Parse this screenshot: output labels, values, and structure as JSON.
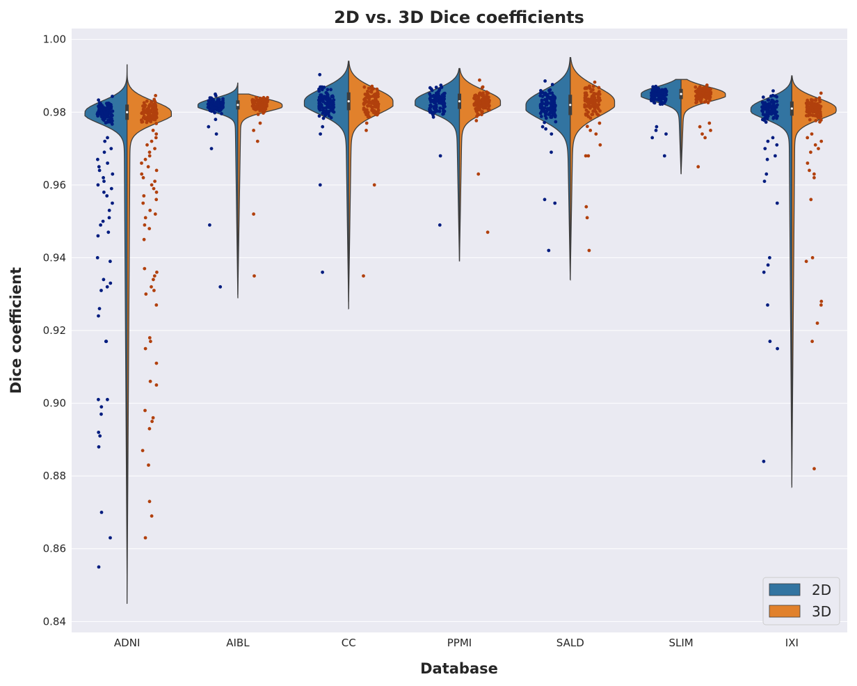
{
  "chart_data": {
    "type": "violin",
    "title": "2D vs. 3D Dice coefficients",
    "xlabel": "Database",
    "ylabel": "Dice coefficient",
    "categories": [
      "ADNI",
      "AIBL",
      "CC",
      "PPMI",
      "SALD",
      "SLIM",
      "IXI"
    ],
    "ylim": [
      0.837,
      1.003
    ],
    "yticks": [
      "0.84",
      "0.86",
      "0.88",
      "0.90",
      "0.92",
      "0.94",
      "0.96",
      "0.98",
      "1.00"
    ],
    "grid": true,
    "legend": {
      "placement": "bottom-right",
      "entries": [
        "2D",
        "3D"
      ]
    },
    "colors": {
      "2D": "#3274a1",
      "3D": "#e1812c",
      "dots_2D": "#001c7f",
      "dots_3D": "#b1400d",
      "background": "#eaeaf2",
      "grid": "#ffffff",
      "outline": "#3d3d3d"
    },
    "series": [
      {
        "name": "2D",
        "distributions": [
          {
            "category": "ADNI",
            "mode": 0.98,
            "sd": 0.003,
            "min": 0.853,
            "max": 0.993,
            "width": 0.38,
            "outliers": [
              0.973,
              0.972,
              0.97,
              0.969,
              0.967,
              0.966,
              0.965,
              0.964,
              0.963,
              0.962,
              0.961,
              0.96,
              0.959,
              0.958,
              0.957,
              0.955,
              0.953,
              0.951,
              0.95,
              0.949,
              0.947,
              0.946,
              0.94,
              0.939,
              0.934,
              0.933,
              0.932,
              0.931,
              0.926,
              0.924,
              0.917,
              0.917,
              0.901,
              0.901,
              0.899,
              0.897,
              0.892,
              0.891,
              0.888,
              0.87,
              0.863,
              0.855
            ]
          },
          {
            "category": "AIBL",
            "mode": 0.982,
            "sd": 0.0018,
            "min": 0.929,
            "max": 0.988,
            "width": 0.36,
            "outliers": [
              0.978,
              0.976,
              0.974,
              0.97,
              0.949,
              0.932
            ]
          },
          {
            "category": "CC",
            "mode": 0.983,
            "sd": 0.0035,
            "min": 0.926,
            "max": 0.994,
            "width": 0.4,
            "outliers": [
              0.979,
              0.976,
              0.974,
              0.96,
              0.936
            ]
          },
          {
            "category": "PPMI",
            "mode": 0.983,
            "sd": 0.003,
            "min": 0.939,
            "max": 0.992,
            "width": 0.4,
            "outliers": [
              0.98,
              0.968,
              0.949
            ]
          },
          {
            "category": "SALD",
            "mode": 0.982,
            "sd": 0.004,
            "min": 0.934,
            "max": 0.995,
            "width": 0.4,
            "outliers": [
              0.976,
              0.974,
              0.969,
              0.956,
              0.955,
              0.942
            ]
          },
          {
            "category": "SLIM",
            "mode": 0.985,
            "sd": 0.002,
            "min": 0.963,
            "max": 0.989,
            "width": 0.36,
            "outliers": [
              0.976,
              0.975,
              0.974,
              0.973,
              0.968
            ]
          },
          {
            "category": "IXI",
            "mode": 0.981,
            "sd": 0.0028,
            "min": 0.877,
            "max": 0.99,
            "width": 0.37,
            "outliers": [
              0.973,
              0.972,
              0.971,
              0.97,
              0.968,
              0.967,
              0.963,
              0.961,
              0.955,
              0.94,
              0.938,
              0.936,
              0.927,
              0.917,
              0.915,
              0.884
            ]
          }
        ]
      },
      {
        "name": "3D",
        "distributions": [
          {
            "category": "ADNI",
            "mode": 0.98,
            "sd": 0.003,
            "min": 0.845,
            "max": 0.993,
            "width": 0.4,
            "outliers": [
              0.975,
              0.974,
              0.973,
              0.972,
              0.971,
              0.97,
              0.969,
              0.968,
              0.967,
              0.966,
              0.965,
              0.964,
              0.963,
              0.962,
              0.961,
              0.96,
              0.959,
              0.958,
              0.957,
              0.956,
              0.955,
              0.953,
              0.952,
              0.951,
              0.949,
              0.948,
              0.945,
              0.937,
              0.936,
              0.935,
              0.934,
              0.932,
              0.931,
              0.93,
              0.927,
              0.918,
              0.917,
              0.915,
              0.911,
              0.906,
              0.905,
              0.898,
              0.896,
              0.895,
              0.893,
              0.887,
              0.883,
              0.873,
              0.869,
              0.863
            ]
          },
          {
            "category": "AIBL",
            "mode": 0.982,
            "sd": 0.0018,
            "min": 0.93,
            "max": 0.985,
            "width": 0.4,
            "outliers": [
              0.977,
              0.975,
              0.972,
              0.952,
              0.935
            ]
          },
          {
            "category": "CC",
            "mode": 0.983,
            "sd": 0.0035,
            "min": 0.928,
            "max": 0.994,
            "width": 0.4,
            "outliers": [
              0.98,
              0.977,
              0.975,
              0.96,
              0.935
            ]
          },
          {
            "category": "PPMI",
            "mode": 0.983,
            "sd": 0.003,
            "min": 0.939,
            "max": 0.992,
            "width": 0.37,
            "outliers": [
              0.98,
              0.963,
              0.947
            ]
          },
          {
            "category": "SALD",
            "mode": 0.983,
            "sd": 0.004,
            "min": 0.934,
            "max": 0.995,
            "width": 0.4,
            "outliers": [
              0.977,
              0.975,
              0.974,
              0.971,
              0.968,
              0.968,
              0.954,
              0.951,
              0.942
            ]
          },
          {
            "category": "SLIM",
            "mode": 0.985,
            "sd": 0.002,
            "min": 0.963,
            "max": 0.989,
            "width": 0.4,
            "outliers": [
              0.977,
              0.976,
              0.975,
              0.974,
              0.973,
              0.965
            ]
          },
          {
            "category": "IXI",
            "mode": 0.981,
            "sd": 0.0028,
            "min": 0.878,
            "max": 0.99,
            "width": 0.4,
            "outliers": [
              0.974,
              0.973,
              0.972,
              0.971,
              0.97,
              0.969,
              0.966,
              0.964,
              0.963,
              0.962,
              0.956,
              0.94,
              0.939,
              0.928,
              0.927,
              0.922,
              0.917,
              0.882
            ]
          }
        ]
      }
    ]
  }
}
